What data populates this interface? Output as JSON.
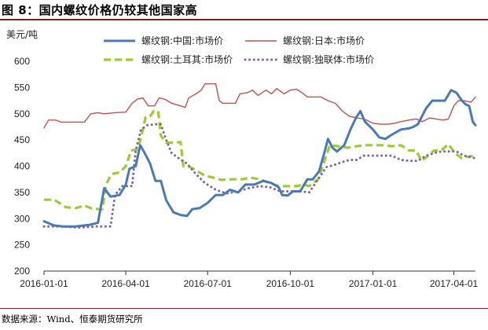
{
  "page": {
    "title": "图 8：国内螺纹价格仍较其他国家高",
    "source": "数据来源：Wind、恒泰期货研究所"
  },
  "chart_data": {
    "type": "line",
    "unit_label": "美元/吨",
    "ylim": [
      200,
      600
    ],
    "yticks": [
      "200",
      "250",
      "300",
      "350",
      "400",
      "450",
      "500",
      "550",
      "600"
    ],
    "xlim": [
      "2016-01-01",
      "2017-04-25"
    ],
    "xticks": [
      "2016-01-01",
      "2016-04-01",
      "2016-07-01",
      "2016-10-01",
      "2017-01-01",
      "2017-04-01"
    ],
    "grid": false,
    "legend_position": "top",
    "series": [
      {
        "name": "螺纹钢:中国:市场价",
        "color": "#4a7ab5",
        "style": "solid",
        "points": [
          [
            "2016-01-01",
            295
          ],
          [
            "2016-01-12",
            287
          ],
          [
            "2016-01-22",
            285
          ],
          [
            "2016-02-05",
            285
          ],
          [
            "2016-02-20",
            288
          ],
          [
            "2016-03-01",
            292
          ],
          [
            "2016-03-08",
            358
          ],
          [
            "2016-03-15",
            342
          ],
          [
            "2016-03-25",
            345
          ],
          [
            "2016-04-01",
            365
          ],
          [
            "2016-04-05",
            395
          ],
          [
            "2016-04-12",
            400
          ],
          [
            "2016-04-17",
            440
          ],
          [
            "2016-04-22",
            425
          ],
          [
            "2016-04-28",
            405
          ],
          [
            "2016-05-04",
            372
          ],
          [
            "2016-05-10",
            372
          ],
          [
            "2016-05-16",
            335
          ],
          [
            "2016-05-24",
            312
          ],
          [
            "2016-06-01",
            307
          ],
          [
            "2016-06-08",
            305
          ],
          [
            "2016-06-14",
            318
          ],
          [
            "2016-06-22",
            320
          ],
          [
            "2016-07-01",
            330
          ],
          [
            "2016-07-10",
            345
          ],
          [
            "2016-07-18",
            345
          ],
          [
            "2016-07-26",
            355
          ],
          [
            "2016-08-04",
            350
          ],
          [
            "2016-08-12",
            365
          ],
          [
            "2016-08-22",
            365
          ],
          [
            "2016-09-01",
            372
          ],
          [
            "2016-09-10",
            368
          ],
          [
            "2016-09-18",
            360
          ],
          [
            "2016-09-22",
            345
          ],
          [
            "2016-09-28",
            344
          ],
          [
            "2016-10-04",
            352
          ],
          [
            "2016-10-12",
            352
          ],
          [
            "2016-10-20",
            375
          ],
          [
            "2016-10-26",
            375
          ],
          [
            "2016-11-02",
            390
          ],
          [
            "2016-11-07",
            420
          ],
          [
            "2016-11-12",
            452
          ],
          [
            "2016-11-17",
            435
          ],
          [
            "2016-11-22",
            428
          ],
          [
            "2016-11-30",
            440
          ],
          [
            "2016-12-07",
            470
          ],
          [
            "2016-12-13",
            492
          ],
          [
            "2016-12-18",
            505
          ],
          [
            "2016-12-23",
            485
          ],
          [
            "2017-01-01",
            470
          ],
          [
            "2017-01-08",
            455
          ],
          [
            "2017-01-15",
            452
          ],
          [
            "2017-01-22",
            460
          ],
          [
            "2017-02-01",
            470
          ],
          [
            "2017-02-10",
            472
          ],
          [
            "2017-02-15",
            475
          ],
          [
            "2017-02-20",
            480
          ],
          [
            "2017-03-01",
            510
          ],
          [
            "2017-03-08",
            525
          ],
          [
            "2017-03-15",
            525
          ],
          [
            "2017-03-22",
            525
          ],
          [
            "2017-03-29",
            545
          ],
          [
            "2017-04-04",
            540
          ],
          [
            "2017-04-10",
            525
          ],
          [
            "2017-04-14",
            518
          ],
          [
            "2017-04-18",
            515
          ],
          [
            "2017-04-22",
            485
          ],
          [
            "2017-04-25",
            478
          ]
        ]
      },
      {
        "name": "螺纹钢:日本:市场价",
        "color": "#c0504d",
        "style": "solid",
        "points": [
          [
            "2016-01-01",
            473
          ],
          [
            "2016-01-06",
            488
          ],
          [
            "2016-01-14",
            488
          ],
          [
            "2016-01-20",
            484
          ],
          [
            "2016-02-05",
            484
          ],
          [
            "2016-02-15",
            484
          ],
          [
            "2016-02-22",
            500
          ],
          [
            "2016-03-01",
            502
          ],
          [
            "2016-03-08",
            500
          ],
          [
            "2016-03-20",
            502
          ],
          [
            "2016-04-01",
            503
          ],
          [
            "2016-04-08",
            520
          ],
          [
            "2016-04-14",
            528
          ],
          [
            "2016-04-20",
            530
          ],
          [
            "2016-04-26",
            515
          ],
          [
            "2016-05-03",
            515
          ],
          [
            "2016-05-08",
            530
          ],
          [
            "2016-05-14",
            528
          ],
          [
            "2016-05-22",
            520
          ],
          [
            "2016-06-01",
            515
          ],
          [
            "2016-06-06",
            512
          ],
          [
            "2016-06-10",
            530
          ],
          [
            "2016-06-18",
            538
          ],
          [
            "2016-06-24",
            545
          ],
          [
            "2016-06-28",
            557
          ],
          [
            "2016-07-10",
            557
          ],
          [
            "2016-07-14",
            525
          ],
          [
            "2016-07-18",
            520
          ],
          [
            "2016-08-01",
            520
          ],
          [
            "2016-08-06",
            538
          ],
          [
            "2016-08-14",
            540
          ],
          [
            "2016-08-20",
            545
          ],
          [
            "2016-08-26",
            535
          ],
          [
            "2016-09-04",
            545
          ],
          [
            "2016-09-10",
            538
          ],
          [
            "2016-09-16",
            548
          ],
          [
            "2016-09-24",
            538
          ],
          [
            "2016-10-01",
            545
          ],
          [
            "2016-10-08",
            547
          ],
          [
            "2016-10-14",
            540
          ],
          [
            "2016-10-20",
            532
          ],
          [
            "2016-10-28",
            532
          ],
          [
            "2016-11-04",
            532
          ],
          [
            "2016-11-12",
            525
          ],
          [
            "2016-11-20",
            520
          ],
          [
            "2016-11-28",
            505
          ],
          [
            "2016-12-06",
            495
          ],
          [
            "2016-12-14",
            492
          ],
          [
            "2016-12-22",
            490
          ],
          [
            "2017-01-01",
            482
          ],
          [
            "2017-01-10",
            480
          ],
          [
            "2017-01-18",
            480
          ],
          [
            "2017-01-25",
            482
          ],
          [
            "2017-02-01",
            485
          ],
          [
            "2017-02-10",
            488
          ],
          [
            "2017-02-18",
            490
          ],
          [
            "2017-02-25",
            485
          ],
          [
            "2017-03-05",
            492
          ],
          [
            "2017-03-12",
            490
          ],
          [
            "2017-03-20",
            488
          ],
          [
            "2017-03-26",
            490
          ],
          [
            "2017-04-01",
            515
          ],
          [
            "2017-04-06",
            525
          ],
          [
            "2017-04-12",
            525
          ],
          [
            "2017-04-20",
            522
          ],
          [
            "2017-04-25",
            532
          ]
        ]
      },
      {
        "name": "螺纹钢:土耳其:市场价",
        "color": "#9acd32",
        "style": "dashed",
        "points": [
          [
            "2016-01-01",
            336
          ],
          [
            "2016-01-12",
            336
          ],
          [
            "2016-01-18",
            330
          ],
          [
            "2016-01-25",
            322
          ],
          [
            "2016-02-05",
            320
          ],
          [
            "2016-02-15",
            325
          ],
          [
            "2016-02-22",
            320
          ],
          [
            "2016-03-01",
            318
          ],
          [
            "2016-03-06",
            318
          ],
          [
            "2016-03-10",
            365
          ],
          [
            "2016-03-16",
            385
          ],
          [
            "2016-03-25",
            388
          ],
          [
            "2016-04-01",
            400
          ],
          [
            "2016-04-07",
            430
          ],
          [
            "2016-04-14",
            432
          ],
          [
            "2016-04-18",
            455
          ],
          [
            "2016-04-23",
            493
          ],
          [
            "2016-04-28",
            495
          ],
          [
            "2016-05-02",
            505
          ],
          [
            "2016-05-07",
            505
          ],
          [
            "2016-05-10",
            458
          ],
          [
            "2016-05-16",
            445
          ],
          [
            "2016-05-25",
            445
          ],
          [
            "2016-06-01",
            446
          ],
          [
            "2016-06-04",
            400
          ],
          [
            "2016-06-12",
            398
          ],
          [
            "2016-06-20",
            390
          ],
          [
            "2016-06-28",
            382
          ],
          [
            "2016-07-08",
            378
          ],
          [
            "2016-07-16",
            374
          ],
          [
            "2016-07-28",
            375
          ],
          [
            "2016-08-08",
            375
          ],
          [
            "2016-08-18",
            378
          ],
          [
            "2016-08-28",
            375
          ],
          [
            "2016-09-08",
            368
          ],
          [
            "2016-09-18",
            362
          ],
          [
            "2016-09-28",
            362
          ],
          [
            "2016-10-08",
            362
          ],
          [
            "2016-10-16",
            365
          ],
          [
            "2016-10-22",
            362
          ],
          [
            "2016-11-01",
            375
          ],
          [
            "2016-11-08",
            410
          ],
          [
            "2016-11-14",
            440
          ],
          [
            "2016-11-24",
            438
          ],
          [
            "2016-12-04",
            435
          ],
          [
            "2016-12-14",
            438
          ],
          [
            "2016-12-22",
            440
          ],
          [
            "2017-01-01",
            440
          ],
          [
            "2017-01-12",
            440
          ],
          [
            "2017-01-22",
            438
          ],
          [
            "2017-02-01",
            440
          ],
          [
            "2017-02-10",
            430
          ],
          [
            "2017-02-18",
            430
          ],
          [
            "2017-02-24",
            410
          ],
          [
            "2017-03-02",
            418
          ],
          [
            "2017-03-10",
            430
          ],
          [
            "2017-03-18",
            430
          ],
          [
            "2017-03-26",
            442
          ],
          [
            "2017-04-02",
            425
          ],
          [
            "2017-04-10",
            415
          ],
          [
            "2017-04-16",
            418
          ],
          [
            "2017-04-25",
            420
          ]
        ]
      },
      {
        "name": "螺纹钢:独联体:市场价",
        "color": "#8064a2",
        "style": "dotted",
        "points": [
          [
            "2016-01-01",
            285
          ],
          [
            "2016-01-20",
            285
          ],
          [
            "2016-02-10",
            283
          ],
          [
            "2016-02-28",
            285
          ],
          [
            "2016-03-15",
            285
          ],
          [
            "2016-03-20",
            345
          ],
          [
            "2016-03-28",
            362
          ],
          [
            "2016-04-08",
            362
          ],
          [
            "2016-04-12",
            430
          ],
          [
            "2016-04-18",
            470
          ],
          [
            "2016-04-25",
            478
          ],
          [
            "2016-05-05",
            480
          ],
          [
            "2016-05-10",
            480
          ],
          [
            "2016-05-16",
            450
          ],
          [
            "2016-05-22",
            425
          ],
          [
            "2016-05-30",
            415
          ],
          [
            "2016-06-08",
            405
          ],
          [
            "2016-06-18",
            385
          ],
          [
            "2016-06-28",
            368
          ],
          [
            "2016-07-10",
            355
          ],
          [
            "2016-07-22",
            348
          ],
          [
            "2016-08-04",
            352
          ],
          [
            "2016-08-16",
            358
          ],
          [
            "2016-08-28",
            362
          ],
          [
            "2016-09-08",
            360
          ],
          [
            "2016-09-20",
            352
          ],
          [
            "2016-10-01",
            352
          ],
          [
            "2016-10-12",
            352
          ],
          [
            "2016-10-22",
            350
          ],
          [
            "2016-11-01",
            375
          ],
          [
            "2016-11-10",
            398
          ],
          [
            "2016-11-18",
            402
          ],
          [
            "2016-11-28",
            408
          ],
          [
            "2016-12-06",
            412
          ],
          [
            "2016-12-14",
            412
          ],
          [
            "2016-12-22",
            420
          ],
          [
            "2017-01-01",
            420
          ],
          [
            "2017-01-12",
            420
          ],
          [
            "2017-01-22",
            420
          ],
          [
            "2017-02-01",
            412
          ],
          [
            "2017-02-12",
            410
          ],
          [
            "2017-02-20",
            410
          ],
          [
            "2017-03-01",
            420
          ],
          [
            "2017-03-10",
            425
          ],
          [
            "2017-03-18",
            428
          ],
          [
            "2017-03-26",
            428
          ],
          [
            "2017-04-04",
            428
          ],
          [
            "2017-04-12",
            420
          ],
          [
            "2017-04-18",
            418
          ],
          [
            "2017-04-25",
            415
          ]
        ]
      }
    ]
  }
}
